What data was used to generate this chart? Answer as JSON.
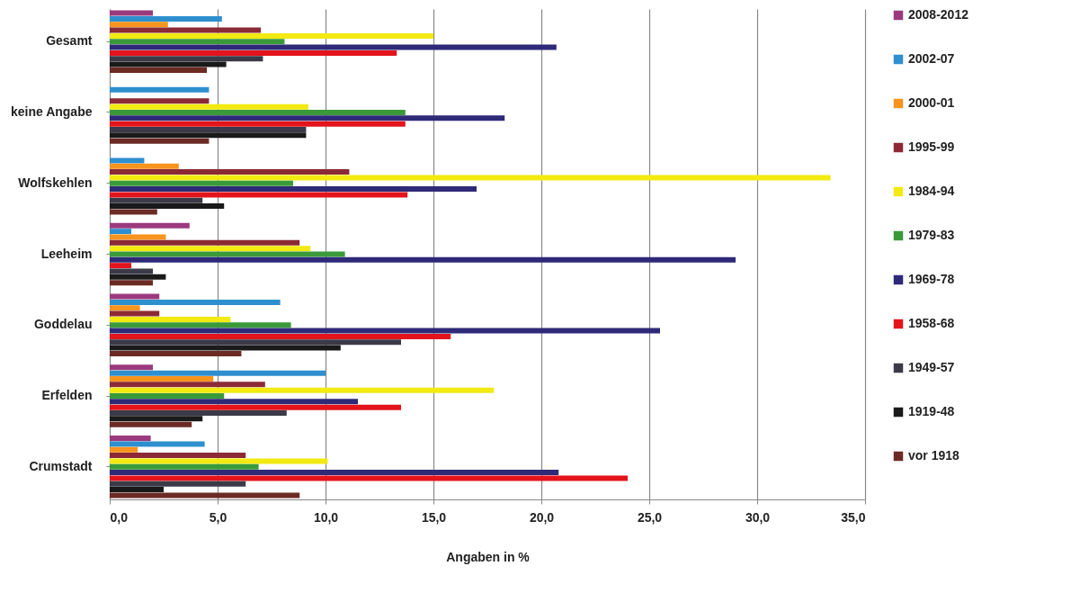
{
  "chart_data": {
    "type": "bar",
    "orientation": "horizontal",
    "xlabel": "Angaben in %",
    "categories": [
      "Gesamt",
      "keine Angabe",
      "Wolfskehlen",
      "Leeheim",
      "Goddelau",
      "Erfelden",
      "Crumstadt"
    ],
    "xlim": [
      0,
      35
    ],
    "xticks": [
      {
        "value": 0,
        "label": "0,0"
      },
      {
        "value": 5,
        "label": "5,0"
      },
      {
        "value": 10,
        "label": "10,0"
      },
      {
        "value": 15,
        "label": "15,0"
      },
      {
        "value": 20,
        "label": "20,0"
      },
      {
        "value": 25,
        "label": "25,0"
      },
      {
        "value": 30,
        "label": "30,0"
      },
      {
        "value": 35,
        "label": "35,0"
      }
    ],
    "grid": "x",
    "legend": "right",
    "series": [
      {
        "name": "2008-2012",
        "color": "#9b3a7e",
        "values": [
          2.0,
          null,
          null,
          3.7,
          2.3,
          2.0,
          1.9
        ]
      },
      {
        "name": "2002-07",
        "color": "#2e8fcf",
        "values": [
          5.2,
          4.6,
          1.6,
          1.0,
          7.9,
          10.0,
          4.4
        ]
      },
      {
        "name": "2000-01",
        "color": "#f7941d",
        "values": [
          2.7,
          null,
          3.2,
          2.6,
          1.4,
          4.8,
          1.3
        ]
      },
      {
        "name": "1995-99",
        "color": "#8b2a35",
        "values": [
          7.0,
          4.6,
          11.1,
          8.8,
          2.3,
          7.2,
          6.3
        ]
      },
      {
        "name": "1984-94",
        "color": "#f2ea10",
        "values": [
          15.0,
          9.2,
          33.4,
          9.3,
          5.6,
          17.8,
          10.1
        ]
      },
      {
        "name": "1979-83",
        "color": "#3a9a3a",
        "values": [
          8.1,
          13.7,
          8.5,
          10.9,
          8.4,
          5.3,
          6.9
        ]
      },
      {
        "name": "1969-78",
        "color": "#2e2a78",
        "values": [
          20.7,
          18.3,
          17.0,
          29.0,
          25.5,
          11.5,
          20.8
        ]
      },
      {
        "name": "1958-68",
        "color": "#e3141c",
        "values": [
          13.3,
          13.7,
          13.8,
          1.0,
          15.8,
          13.5,
          24.0
        ]
      },
      {
        "name": "1949-57",
        "color": "#3b3a48",
        "values": [
          7.1,
          9.1,
          4.3,
          2.0,
          13.5,
          8.2,
          6.3
        ]
      },
      {
        "name": "1919-48",
        "color": "#1a1a1a",
        "values": [
          5.4,
          9.1,
          5.3,
          2.6,
          10.7,
          4.3,
          2.5
        ]
      },
      {
        "name": "vor 1918",
        "color": "#6b2b24",
        "values": [
          4.5,
          4.6,
          2.2,
          2.0,
          6.1,
          3.8,
          8.8
        ]
      }
    ]
  }
}
